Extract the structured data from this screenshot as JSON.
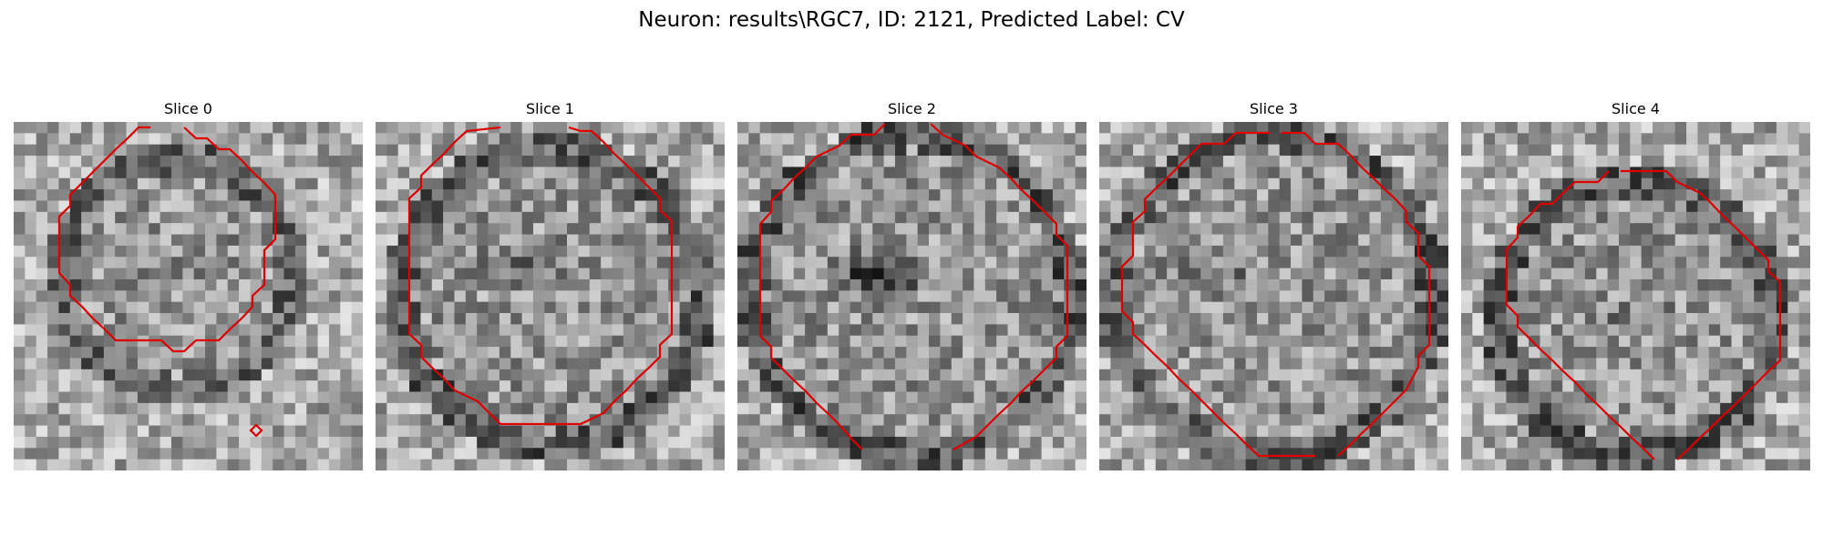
{
  "figure": {
    "title": "Neuron: results\\RGC7, ID: 2121, Predicted Label: CV"
  },
  "slices": [
    {
      "title": "Slice 0",
      "cells": []
    },
    {
      "title": "Slice 1",
      "cells": []
    },
    {
      "title": "Slice 2",
      "cells": []
    },
    {
      "title": "Slice 3",
      "cells": []
    },
    {
      "title": "Slice 4",
      "cells": []
    }
  ],
  "colors": {
    "contour": "#e00000",
    "background": "#ffffff"
  }
}
